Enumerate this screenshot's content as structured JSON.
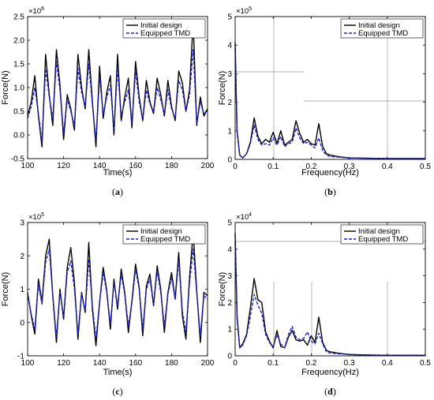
{
  "colors": {
    "initial": "#000000",
    "tmd": "#1f1fd0",
    "grid": "#9a9a9a"
  },
  "chart_data": [
    {
      "id": "a",
      "type": "line",
      "caption": "a",
      "xlabel": "Time(s)",
      "ylabel": "Force(N)",
      "multiplier": "6",
      "xlim": [
        100,
        200
      ],
      "ylim": [
        -0.5,
        2.5
      ],
      "xticks": [
        "100",
        "120",
        "140",
        "160",
        "180",
        "200"
      ],
      "yticks": [
        "-0.5",
        "0.0",
        "0.5",
        "1.0",
        "1.5",
        "2.0",
        "2.5"
      ],
      "legend_position": "top-right",
      "series": [
        {
          "name": "Initial design",
          "style": "solid",
          "x": [
            100,
            102,
            104,
            106,
            108,
            110,
            112,
            114,
            116,
            118,
            120,
            122,
            124,
            126,
            128,
            130,
            132,
            134,
            136,
            138,
            140,
            142,
            144,
            146,
            148,
            150,
            152,
            154,
            156,
            158,
            160,
            162,
            164,
            166,
            168,
            170,
            172,
            174,
            176,
            178,
            180,
            182,
            184,
            186,
            188,
            190,
            192,
            194,
            196,
            198,
            200
          ],
          "y": [
            0.4,
            0.7,
            1.25,
            0.4,
            -0.25,
            1.7,
            0.85,
            0.2,
            1.8,
            1.05,
            -0.1,
            0.85,
            0.55,
            0.1,
            1.7,
            1.0,
            0.55,
            1.8,
            0.7,
            -0.25,
            1.45,
            0.35,
            0.9,
            1.25,
            0.0,
            1.7,
            0.3,
            0.8,
            1.2,
            0.15,
            1.55,
            0.8,
            0.3,
            1.15,
            0.7,
            0.45,
            1.2,
            0.85,
            0.4,
            1.15,
            0.6,
            0.3,
            1.35,
            1.1,
            0.5,
            0.95,
            2.4,
            0.2,
            0.8,
            0.4,
            0.55
          ]
        },
        {
          "name": "Equipped TMD",
          "style": "dashed",
          "x": [
            100,
            102,
            104,
            106,
            108,
            110,
            112,
            114,
            116,
            118,
            120,
            122,
            124,
            126,
            128,
            130,
            132,
            134,
            136,
            138,
            140,
            142,
            144,
            146,
            148,
            150,
            152,
            154,
            156,
            158,
            160,
            162,
            164,
            166,
            168,
            170,
            172,
            174,
            176,
            178,
            180,
            182,
            184,
            186,
            188,
            190,
            192,
            194,
            196,
            198,
            200
          ],
          "y": [
            0.35,
            0.6,
            1.0,
            0.45,
            -0.15,
            1.4,
            0.8,
            0.35,
            1.55,
            0.95,
            0.05,
            0.75,
            0.5,
            0.2,
            1.4,
            0.9,
            0.6,
            1.5,
            0.65,
            -0.1,
            1.2,
            0.45,
            0.8,
            1.05,
            0.1,
            1.4,
            0.4,
            0.7,
            0.95,
            0.25,
            1.35,
            0.7,
            0.35,
            0.95,
            0.65,
            0.5,
            1.0,
            0.75,
            0.45,
            0.95,
            0.55,
            0.35,
            1.15,
            0.95,
            0.5,
            0.85,
            1.8,
            0.25,
            0.7,
            0.45,
            0.5
          ]
        }
      ]
    },
    {
      "id": "b",
      "type": "line",
      "caption": "b",
      "xlabel": "Frequency(Hz)",
      "ylabel": "Force(N)",
      "multiplier": "5",
      "xlim": [
        0,
        0.5
      ],
      "ylim": [
        0,
        5
      ],
      "xticks": [
        "0",
        "0.1",
        "0.2",
        "0.3",
        "0.4",
        "0.5"
      ],
      "yticks": [
        "0",
        "1",
        "2",
        "3",
        "4",
        "5"
      ],
      "legend_position": "top-right",
      "series": [
        {
          "name": "Initial design",
          "style": "solid",
          "x": [
            0,
            0.005,
            0.012,
            0.02,
            0.03,
            0.04,
            0.05,
            0.06,
            0.07,
            0.08,
            0.09,
            0.1,
            0.11,
            0.12,
            0.13,
            0.14,
            0.15,
            0.16,
            0.17,
            0.18,
            0.19,
            0.2,
            0.21,
            0.22,
            0.23,
            0.24,
            0.25,
            0.27,
            0.3,
            0.35,
            0.4,
            0.45,
            0.5
          ],
          "y": [
            4.1,
            1.0,
            0.15,
            0.05,
            0.2,
            0.6,
            1.45,
            0.8,
            0.55,
            0.7,
            0.6,
            0.95,
            0.55,
            1.0,
            0.5,
            0.6,
            0.7,
            1.35,
            0.9,
            0.6,
            0.7,
            0.55,
            0.5,
            1.25,
            0.45,
            0.2,
            0.15,
            0.1,
            0.05,
            0.04,
            0.03,
            0.03,
            0.03
          ]
        },
        {
          "name": "Equipped TMD",
          "style": "dashed",
          "x": [
            0,
            0.005,
            0.012,
            0.02,
            0.03,
            0.04,
            0.05,
            0.06,
            0.07,
            0.08,
            0.09,
            0.1,
            0.11,
            0.12,
            0.13,
            0.14,
            0.15,
            0.16,
            0.17,
            0.18,
            0.19,
            0.2,
            0.21,
            0.22,
            0.23,
            0.24,
            0.25,
            0.27,
            0.3,
            0.35,
            0.4,
            0.45,
            0.5
          ],
          "y": [
            3.9,
            1.0,
            0.15,
            0.05,
            0.2,
            0.55,
            1.2,
            0.7,
            0.5,
            0.55,
            0.5,
            0.75,
            0.5,
            0.8,
            0.45,
            0.55,
            0.6,
            1.1,
            0.75,
            0.55,
            0.6,
            0.5,
            0.4,
            0.75,
            0.3,
            0.15,
            0.1,
            0.08,
            0.05,
            0.04,
            0.03,
            0.03,
            0.03
          ]
        }
      ]
    },
    {
      "id": "c",
      "type": "line",
      "caption": "c",
      "xlabel": "Time(s)",
      "ylabel": "Force(N)",
      "multiplier": "5",
      "xlim": [
        100,
        200
      ],
      "ylim": [
        -1,
        3
      ],
      "xticks": [
        "100",
        "120",
        "140",
        "160",
        "180",
        "200"
      ],
      "yticks": [
        "-1",
        "0",
        "1",
        "2",
        "3"
      ],
      "legend_position": "top-right",
      "series": [
        {
          "name": "Initial design",
          "style": "solid",
          "x": [
            100,
            102,
            104,
            106,
            108,
            110,
            112,
            114,
            116,
            118,
            120,
            122,
            124,
            126,
            128,
            130,
            132,
            134,
            136,
            138,
            140,
            142,
            144,
            146,
            148,
            150,
            152,
            154,
            156,
            158,
            160,
            162,
            164,
            166,
            168,
            170,
            172,
            174,
            176,
            178,
            180,
            182,
            184,
            186,
            188,
            190,
            192,
            194,
            196,
            198,
            200
          ],
          "y": [
            0.9,
            0.2,
            -0.35,
            1.3,
            0.6,
            2.0,
            2.5,
            0.8,
            -0.6,
            1.0,
            0.1,
            1.65,
            2.25,
            1.2,
            -0.5,
            0.9,
            0.3,
            2.4,
            0.4,
            -0.7,
            0.6,
            1.65,
            0.95,
            -0.2,
            1.3,
            0.4,
            1.6,
            0.9,
            -0.3,
            0.65,
            1.75,
            1.05,
            -0.4,
            1.1,
            1.45,
            0.5,
            1.7,
            1.0,
            -0.3,
            0.9,
            1.5,
            0.7,
            2.1,
            0.2,
            -0.5,
            1.35,
            2.7,
            0.95,
            -0.6,
            0.9,
            0.8
          ]
        },
        {
          "name": "Equipped TMD",
          "style": "dashed",
          "x": [
            100,
            102,
            104,
            106,
            108,
            110,
            112,
            114,
            116,
            118,
            120,
            122,
            124,
            126,
            128,
            130,
            132,
            134,
            136,
            138,
            140,
            142,
            144,
            146,
            148,
            150,
            152,
            154,
            156,
            158,
            160,
            162,
            164,
            166,
            168,
            170,
            172,
            174,
            176,
            178,
            180,
            182,
            184,
            186,
            188,
            190,
            192,
            194,
            196,
            198,
            200
          ],
          "y": [
            0.85,
            0.25,
            -0.2,
            1.15,
            0.55,
            1.8,
            2.2,
            0.8,
            -0.45,
            0.9,
            0.2,
            1.5,
            1.85,
            1.0,
            -0.35,
            0.85,
            0.35,
            1.9,
            0.5,
            -0.5,
            0.6,
            1.5,
            0.9,
            -0.05,
            1.2,
            0.5,
            1.45,
            0.85,
            -0.1,
            0.6,
            1.6,
            1.0,
            -0.2,
            1.0,
            1.3,
            0.55,
            1.55,
            0.9,
            -0.1,
            0.85,
            1.35,
            0.7,
            1.85,
            0.35,
            -0.3,
            1.2,
            2.2,
            0.9,
            -0.4,
            0.8,
            0.7
          ]
        }
      ]
    },
    {
      "id": "d",
      "type": "line",
      "caption": "d",
      "xlabel": "Frequency(Hz)",
      "ylabel": "Force(N)",
      "multiplier": "4",
      "xlim": [
        0,
        0.5
      ],
      "ylim": [
        0,
        5
      ],
      "xticks": [
        "0",
        "0.1",
        "0.2",
        "0.3",
        "0.4",
        "0.5"
      ],
      "yticks": [
        "0",
        "1",
        "2",
        "3",
        "4",
        "5"
      ],
      "legend_position": "top-right",
      "series": [
        {
          "name": "Initial design",
          "style": "solid",
          "x": [
            0,
            0.005,
            0.012,
            0.02,
            0.03,
            0.04,
            0.05,
            0.06,
            0.07,
            0.08,
            0.09,
            0.1,
            0.11,
            0.12,
            0.13,
            0.14,
            0.15,
            0.16,
            0.17,
            0.18,
            0.19,
            0.2,
            0.21,
            0.22,
            0.23,
            0.24,
            0.25,
            0.27,
            0.3,
            0.35,
            0.4,
            0.45,
            0.5
          ],
          "y": [
            4.6,
            1.5,
            0.3,
            0.45,
            0.8,
            1.8,
            2.9,
            2.1,
            2.0,
            0.9,
            0.55,
            0.3,
            0.95,
            0.35,
            0.3,
            0.7,
            0.95,
            0.6,
            0.55,
            0.6,
            0.4,
            0.75,
            0.5,
            1.45,
            0.5,
            0.2,
            0.15,
            0.1,
            0.05,
            0.03,
            0.02,
            0.02,
            0.02
          ]
        },
        {
          "name": "Equipped TMD",
          "style": "dashed",
          "x": [
            0,
            0.005,
            0.012,
            0.02,
            0.03,
            0.04,
            0.05,
            0.06,
            0.07,
            0.08,
            0.09,
            0.1,
            0.11,
            0.12,
            0.13,
            0.14,
            0.15,
            0.16,
            0.17,
            0.18,
            0.19,
            0.2,
            0.21,
            0.22,
            0.23,
            0.24,
            0.25,
            0.27,
            0.3,
            0.35,
            0.4,
            0.45,
            0.5
          ],
          "y": [
            4.3,
            1.4,
            0.3,
            0.4,
            0.75,
            1.5,
            2.3,
            1.9,
            1.6,
            0.8,
            0.5,
            0.35,
            0.8,
            0.45,
            0.3,
            0.8,
            1.1,
            0.7,
            0.6,
            0.65,
            0.9,
            0.55,
            0.45,
            0.85,
            0.45,
            0.15,
            0.1,
            0.08,
            0.05,
            0.03,
            0.02,
            0.02,
            0.02
          ]
        }
      ]
    }
  ]
}
